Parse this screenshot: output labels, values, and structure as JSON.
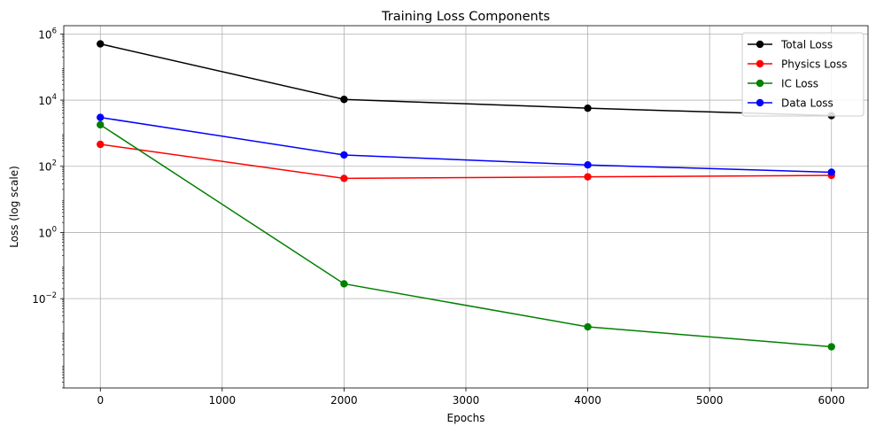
{
  "chart_data": {
    "type": "line",
    "title": "Training Loss Components",
    "xlabel": "Epochs",
    "ylabel": "Loss (log scale)",
    "yscale": "log",
    "xlim": [
      -300,
      6300
    ],
    "ylim_log10": [
      -4.7,
      6.25
    ],
    "xticks": [
      0,
      1000,
      2000,
      3000,
      4000,
      5000,
      6000
    ],
    "xtick_labels": [
      "0",
      "1000",
      "2000",
      "3000",
      "4000",
      "5000",
      "6000"
    ],
    "yticks_log10": [
      -2,
      0,
      2,
      4,
      6
    ],
    "ytick_labels": [
      {
        "base": "10",
        "exp": "−2"
      },
      {
        "base": "10",
        "exp": "0"
      },
      {
        "base": "10",
        "exp": "2"
      },
      {
        "base": "10",
        "exp": "4"
      },
      {
        "base": "10",
        "exp": "6"
      }
    ],
    "grid": true,
    "legend_position": "top-right",
    "x": [
      0,
      2000,
      4000,
      6000
    ],
    "series": [
      {
        "name": "Total Loss",
        "color": "#000000",
        "values": [
          500000,
          10500,
          5700,
          3400
        ]
      },
      {
        "name": "Physics Loss",
        "color": "#ff0000",
        "values": [
          460,
          43,
          48,
          53
        ]
      },
      {
        "name": "IC Loss",
        "color": "#008000",
        "values": [
          1800,
          0.028,
          0.0014,
          0.00035
        ]
      },
      {
        "name": "Data Loss",
        "color": "#0000ff",
        "values": [
          3000,
          220,
          110,
          66
        ]
      }
    ]
  }
}
